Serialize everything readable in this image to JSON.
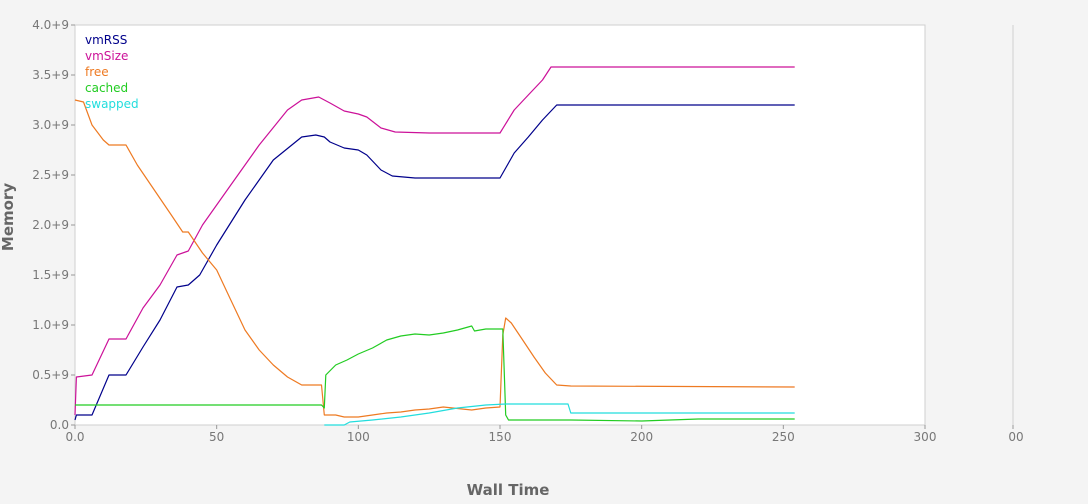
{
  "chart_data": {
    "type": "line",
    "xlabel": "Wall Time",
    "ylabel": "Memory",
    "xlim": [
      0,
      300
    ],
    "ylim": [
      0,
      4000000000
    ],
    "x_ticks": [
      "0.0",
      "50",
      "100",
      "150",
      "200",
      "250",
      "300"
    ],
    "y_ticks": [
      "0.0",
      "0.5+9",
      "1.0+9",
      "1.5+9",
      "2.0+9",
      "2.5+9",
      "3.0+9",
      "3.5+9",
      "4.0+9"
    ],
    "right_panel_tick": "00",
    "grid": false,
    "legend_position": "top-left",
    "series": [
      {
        "name": "vmRSS",
        "color": "#00008b",
        "points": [
          [
            0,
            0.05
          ],
          [
            0.5,
            0.1
          ],
          [
            6,
            0.1
          ],
          [
            12,
            0.5
          ],
          [
            18,
            0.5
          ],
          [
            24,
            0.78
          ],
          [
            30,
            1.05
          ],
          [
            36,
            1.38
          ],
          [
            40,
            1.4
          ],
          [
            44,
            1.5
          ],
          [
            50,
            1.8
          ],
          [
            60,
            2.25
          ],
          [
            70,
            2.65
          ],
          [
            80,
            2.88
          ],
          [
            85,
            2.9
          ],
          [
            88,
            2.88
          ],
          [
            90,
            2.83
          ],
          [
            95,
            2.77
          ],
          [
            100,
            2.75
          ],
          [
            103,
            2.7
          ],
          [
            108,
            2.55
          ],
          [
            112,
            2.49
          ],
          [
            120,
            2.47
          ],
          [
            150,
            2.47
          ],
          [
            155,
            2.72
          ],
          [
            160,
            2.88
          ],
          [
            165,
            3.05
          ],
          [
            170,
            3.2
          ],
          [
            175,
            3.2
          ],
          [
            254,
            3.2
          ]
        ]
      },
      {
        "name": "vmSize",
        "color": "#cc1199",
        "points": [
          [
            0,
            0.1
          ],
          [
            0.5,
            0.48
          ],
          [
            6,
            0.5
          ],
          [
            12,
            0.86
          ],
          [
            18,
            0.86
          ],
          [
            24,
            1.17
          ],
          [
            30,
            1.4
          ],
          [
            36,
            1.7
          ],
          [
            40,
            1.74
          ],
          [
            45,
            2.0
          ],
          [
            55,
            2.4
          ],
          [
            65,
            2.8
          ],
          [
            75,
            3.15
          ],
          [
            80,
            3.25
          ],
          [
            86,
            3.28
          ],
          [
            90,
            3.22
          ],
          [
            95,
            3.14
          ],
          [
            100,
            3.11
          ],
          [
            103,
            3.08
          ],
          [
            108,
            2.97
          ],
          [
            113,
            2.93
          ],
          [
            125,
            2.92
          ],
          [
            150,
            2.92
          ],
          [
            155,
            3.15
          ],
          [
            160,
            3.3
          ],
          [
            165,
            3.45
          ],
          [
            168,
            3.58
          ],
          [
            254,
            3.58
          ]
        ]
      },
      {
        "name": "free",
        "color": "#ee7a22",
        "points": [
          [
            0,
            3.25
          ],
          [
            3,
            3.23
          ],
          [
            6,
            3.0
          ],
          [
            10,
            2.85
          ],
          [
            12,
            2.8
          ],
          [
            18,
            2.8
          ],
          [
            22,
            2.6
          ],
          [
            28,
            2.35
          ],
          [
            34,
            2.1
          ],
          [
            38,
            1.93
          ],
          [
            40,
            1.93
          ],
          [
            45,
            1.72
          ],
          [
            50,
            1.55
          ],
          [
            55,
            1.25
          ],
          [
            60,
            0.95
          ],
          [
            65,
            0.75
          ],
          [
            70,
            0.6
          ],
          [
            75,
            0.48
          ],
          [
            80,
            0.4
          ],
          [
            87,
            0.4
          ],
          [
            88,
            0.1
          ],
          [
            92,
            0.1
          ],
          [
            95,
            0.08
          ],
          [
            100,
            0.08
          ],
          [
            105,
            0.1
          ],
          [
            110,
            0.12
          ],
          [
            115,
            0.13
          ],
          [
            120,
            0.15
          ],
          [
            125,
            0.16
          ],
          [
            130,
            0.18
          ],
          [
            140,
            0.15
          ],
          [
            145,
            0.17
          ],
          [
            150,
            0.18
          ],
          [
            151,
            0.9
          ],
          [
            152,
            1.07
          ],
          [
            154,
            1.02
          ],
          [
            158,
            0.85
          ],
          [
            162,
            0.68
          ],
          [
            166,
            0.52
          ],
          [
            170,
            0.4
          ],
          [
            175,
            0.39
          ],
          [
            254,
            0.38
          ]
        ]
      },
      {
        "name": "cached",
        "color": "#22cc22",
        "points": [
          [
            0,
            0.2
          ],
          [
            87,
            0.2
          ],
          [
            88,
            0.17
          ],
          [
            88.5,
            0.5
          ],
          [
            92,
            0.6
          ],
          [
            96,
            0.65
          ],
          [
            100,
            0.71
          ],
          [
            105,
            0.77
          ],
          [
            110,
            0.85
          ],
          [
            115,
            0.89
          ],
          [
            120,
            0.91
          ],
          [
            125,
            0.9
          ],
          [
            130,
            0.92
          ],
          [
            135,
            0.95
          ],
          [
            140,
            0.99
          ],
          [
            141,
            0.94
          ],
          [
            145,
            0.96
          ],
          [
            151,
            0.96
          ],
          [
            152,
            0.1
          ],
          [
            153,
            0.05
          ],
          [
            175,
            0.05
          ],
          [
            200,
            0.04
          ],
          [
            220,
            0.06
          ],
          [
            254,
            0.06
          ]
        ]
      },
      {
        "name": "swapped",
        "color": "#22dddd",
        "points": [
          [
            88,
            0.0
          ],
          [
            95,
            0.0
          ],
          [
            97,
            0.03
          ],
          [
            105,
            0.05
          ],
          [
            115,
            0.08
          ],
          [
            125,
            0.12
          ],
          [
            135,
            0.17
          ],
          [
            145,
            0.2
          ],
          [
            152,
            0.21
          ],
          [
            174,
            0.21
          ],
          [
            175,
            0.12
          ],
          [
            254,
            0.12
          ]
        ]
      }
    ]
  }
}
